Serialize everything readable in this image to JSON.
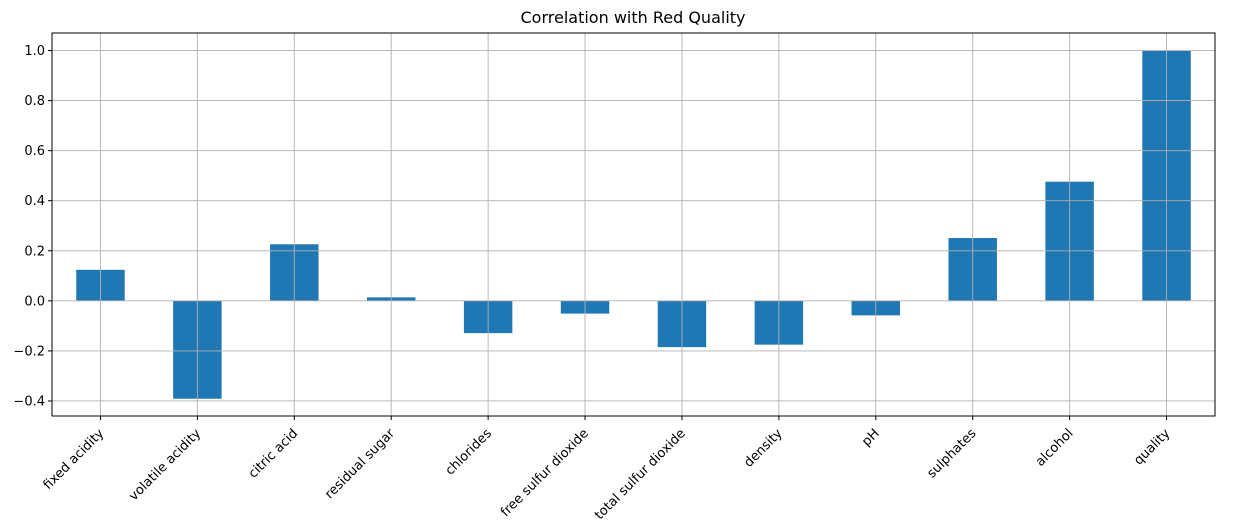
{
  "chart_data": {
    "type": "bar",
    "title": "Correlation with Red Quality",
    "xlabel": "",
    "ylabel": "",
    "categories": [
      "fixed acidity",
      "volatile acidity",
      "citric acid",
      "residual sugar",
      "chlorides",
      "free sulfur dioxide",
      "total sulfur dioxide",
      "density",
      "pH",
      "sulphates",
      "alcohol",
      "quality"
    ],
    "values": [
      0.124,
      -0.391,
      0.226,
      0.014,
      -0.129,
      -0.051,
      -0.185,
      -0.175,
      -0.058,
      0.251,
      0.476,
      1.0
    ],
    "ylim": [
      -0.46,
      1.07
    ],
    "yticks": [
      -0.4,
      -0.2,
      0.0,
      0.2,
      0.4,
      0.6,
      0.8,
      1.0
    ],
    "ytick_labels": [
      "−0.4",
      "−0.2",
      "0.0",
      "0.2",
      "0.4",
      "0.6",
      "0.8",
      "1.0"
    ],
    "grid": true,
    "bar_color": "#1f77b4"
  }
}
